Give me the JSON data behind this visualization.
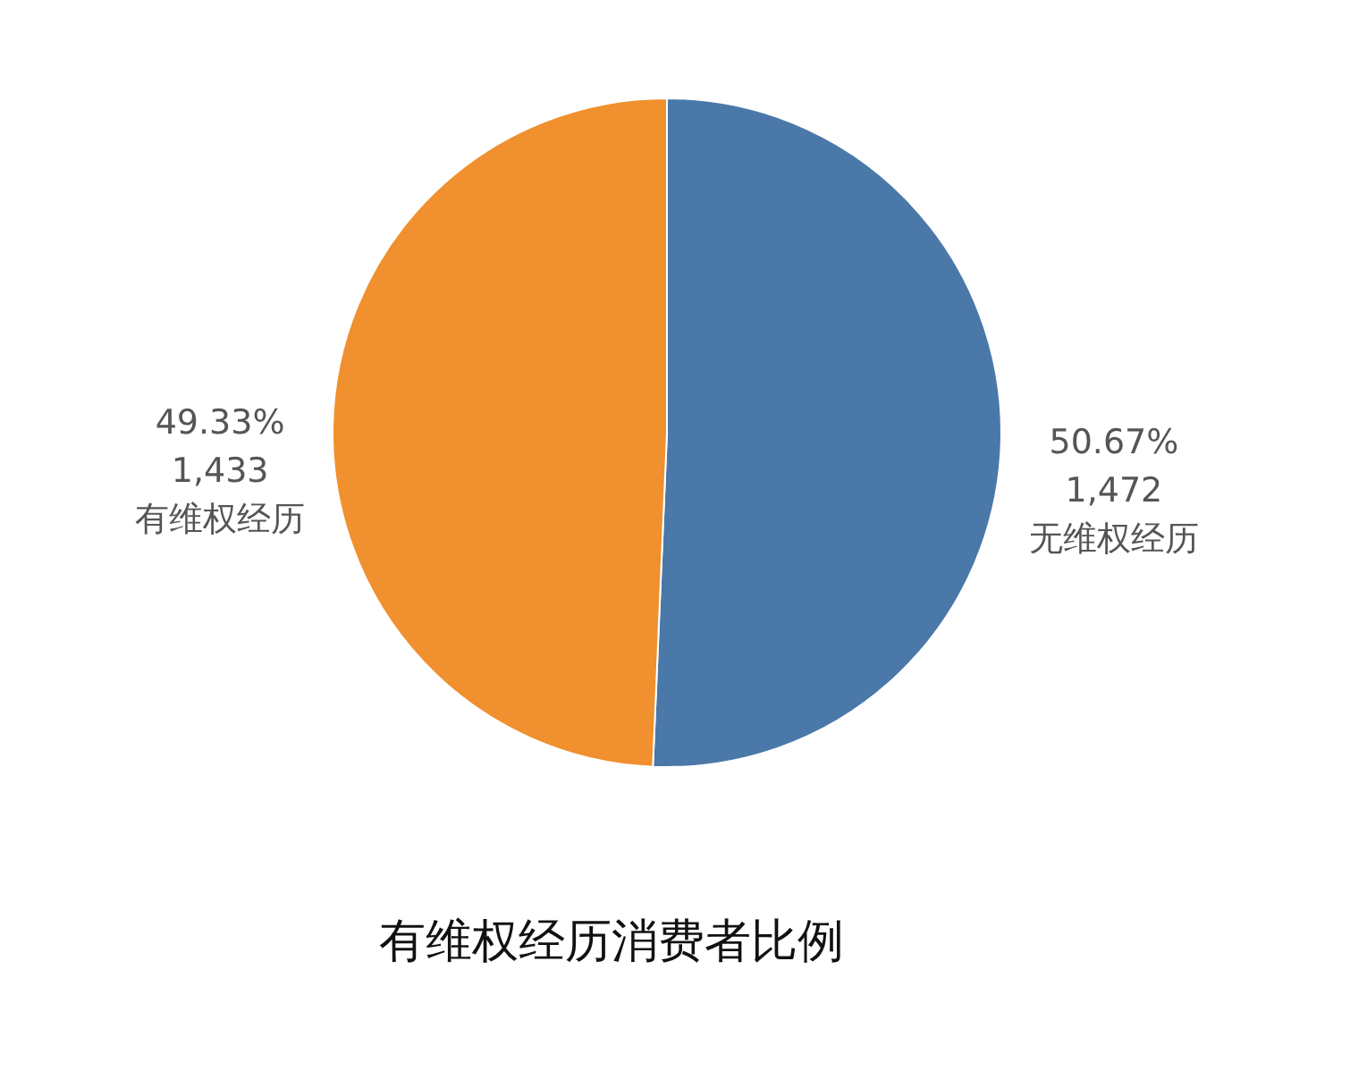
{
  "chart_data": {
    "type": "pie",
    "title": "有维权经历消费者比例",
    "categories": [
      "无维权经历",
      "有维权经历"
    ],
    "values": [
      1472,
      1433
    ],
    "value_labels": [
      "50.67%\n1,472",
      "49.33%\n1,433"
    ],
    "colors": [
      "#4a78a8",
      "#f0902e"
    ]
  }
}
